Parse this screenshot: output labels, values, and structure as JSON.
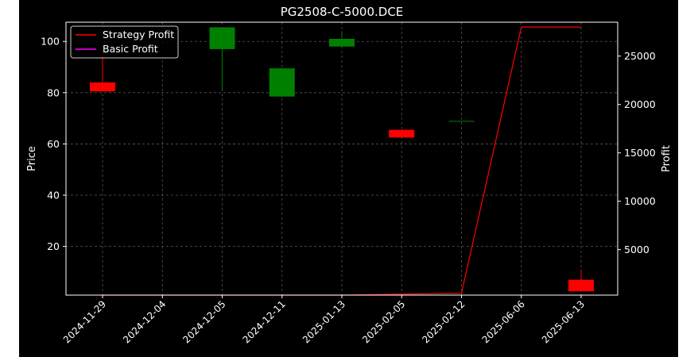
{
  "chart_data": {
    "type": "candlestick",
    "title": "PG2508-C-5000.DCE",
    "ylabel_left": "Price",
    "ylabel_right": "Profit",
    "categories": [
      "2024-11-29",
      "2024-12-04",
      "2024-12-05",
      "2024-12-11",
      "2025-01-13",
      "2025-02-05",
      "2025-02-12",
      "2025-06-06",
      "2025-06-13"
    ],
    "ylim_left": [
      1,
      107.5
    ],
    "ylim_right": [
      300,
      28500
    ],
    "yticks_left": [
      20,
      40,
      60,
      80,
      100
    ],
    "yticks_right": [
      5000,
      10000,
      15000,
      20000,
      25000
    ],
    "grid": true,
    "legend_position": "top-left",
    "candles": [
      {
        "date": "2024-11-29",
        "open": 84,
        "close": 80.5,
        "high": 96,
        "low": 80.5
      },
      {
        "date": "2024-12-05",
        "open": 97,
        "close": 105.5,
        "high": 105.5,
        "low": 81
      },
      {
        "date": "2024-12-11",
        "open": 78.5,
        "close": 89.5,
        "high": 89.5,
        "low": 78.5
      },
      {
        "date": "2025-01-13",
        "open": 98,
        "close": 101,
        "high": 104,
        "low": 98
      },
      {
        "date": "2025-02-05",
        "open": 65.5,
        "close": 62.5,
        "high": 65.5,
        "low": 62.5
      },
      {
        "date": "2025-02-12",
        "open": 69,
        "close": 69,
        "high": 69,
        "low": 69
      },
      {
        "date": "2025-06-13",
        "open": 7,
        "close": 2.5,
        "high": 11,
        "low": 2.5
      }
    ],
    "series": [
      {
        "name": "Strategy Profit",
        "color": "#ff0000",
        "values": [
          300,
          300,
          300,
          300,
          300,
          400,
          500,
          28000,
          28000
        ]
      },
      {
        "name": "Basic Profit",
        "color": "#ff00ff",
        "values": [
          null,
          null,
          null,
          null,
          null,
          null,
          null,
          null,
          null
        ]
      }
    ],
    "colors": {
      "up": "#008000",
      "down": "#ff0000",
      "background": "#000000",
      "grid": "#555555"
    }
  }
}
